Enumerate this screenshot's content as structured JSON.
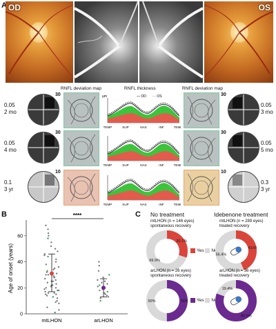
{
  "panel_a": {
    "letter": "A",
    "od_label": "OD",
    "os_label": "OS",
    "headers": {
      "left": "RNFL deviation map",
      "mid": "RNFL thickness",
      "right": "RNFL deviation map"
    },
    "thickness_unit": "μm",
    "legend": {
      "od": "OD",
      "os": "OS"
    },
    "xticks": [
      "TEMP",
      "SUP",
      "NAS",
      "INF",
      "TEMP"
    ],
    "rows": [
      {
        "left_acuity": "0.05",
        "left_time": "2 mo",
        "left_scale": "30",
        "right_scale": "30",
        "right_acuity": "0.05",
        "right_time": "3 mo"
      },
      {
        "left_acuity": "0.05",
        "left_time": "4 mo",
        "left_scale": "30",
        "right_scale": "30",
        "right_acuity": "0.05",
        "right_time": "5 mo"
      },
      {
        "left_acuity": "0.1",
        "left_time": "3 yr",
        "left_scale": "10",
        "right_scale": "10",
        "right_acuity": "0.3",
        "right_time": "3 yr"
      }
    ]
  },
  "panel_b": {
    "letter": "B",
    "ylabel": "Age of onset (years)",
    "significance": "****",
    "yticks": [
      "0",
      "20",
      "40",
      "60"
    ],
    "categories": [
      "mtLHON",
      "arLHON"
    ],
    "colors": {
      "mt": "#d9453b",
      "ar": "#6a2a8f"
    }
  },
  "panel_c": {
    "letter": "C",
    "title_left": "No treatment",
    "title_right": "Idebenone treatment",
    "groups": [
      {
        "name": "mtLHON",
        "n": "146 eyes",
        "desc": "spontaneous recovery",
        "yes": 30.1,
        "no": 69.9,
        "yes_label": "30.1%",
        "no_label": "69.9%",
        "color": "#d9453b"
      },
      {
        "name": "mtLHON",
        "n": "289 eyes",
        "desc": "treated recovery",
        "yes": 43.6,
        "no": 56.4,
        "yes_label": "43.6%",
        "no_label": "56.4%",
        "color": "#d9453b"
      },
      {
        "name": "arLHON",
        "n": "26 eyes",
        "desc": "spontaneous recovery",
        "yes": 50,
        "no": 50,
        "yes_label": "50%",
        "no_label": "50%",
        "color": "#6a2a8f"
      },
      {
        "name": "arLHON",
        "n": "36 eyes",
        "desc": "treated recovery",
        "yes": 80.6,
        "no": 19.4,
        "yes_label": "80.6%",
        "no_label": "19.4%",
        "color": "#6a2a8f"
      }
    ],
    "legend_yes": "Yes",
    "legend_no": "No",
    "n_prefix": "(n = "
  },
  "chart_data": [
    {
      "type": "pie",
      "title": "mtLHON (n = 146 eyes) spontaneous recovery",
      "categories": [
        "Yes",
        "No"
      ],
      "values": [
        30.1,
        69.9
      ]
    },
    {
      "type": "pie",
      "title": "mtLHON (n = 289 eyes) treated recovery",
      "categories": [
        "Yes",
        "No"
      ],
      "values": [
        43.6,
        56.4
      ]
    },
    {
      "type": "pie",
      "title": "arLHON (n = 26 eyes) spontaneous recovery",
      "categories": [
        "Yes",
        "No"
      ],
      "values": [
        50,
        50
      ]
    },
    {
      "type": "pie",
      "title": "arLHON (n = 36 eyes) treated recovery",
      "categories": [
        "Yes",
        "No"
      ],
      "values": [
        80.6,
        19.4
      ]
    },
    {
      "type": "scatter",
      "categories": [
        "mtLHON",
        "arLHON"
      ],
      "ylabel": "Age of onset (years)",
      "ylim": [
        0,
        70
      ],
      "series": [
        {
          "name": "mtLHON",
          "mean": 31,
          "sd_low": 17,
          "sd_high": 46
        },
        {
          "name": "arLHON",
          "mean": 20,
          "sd_low": 13,
          "sd_high": 27
        }
      ]
    }
  ]
}
